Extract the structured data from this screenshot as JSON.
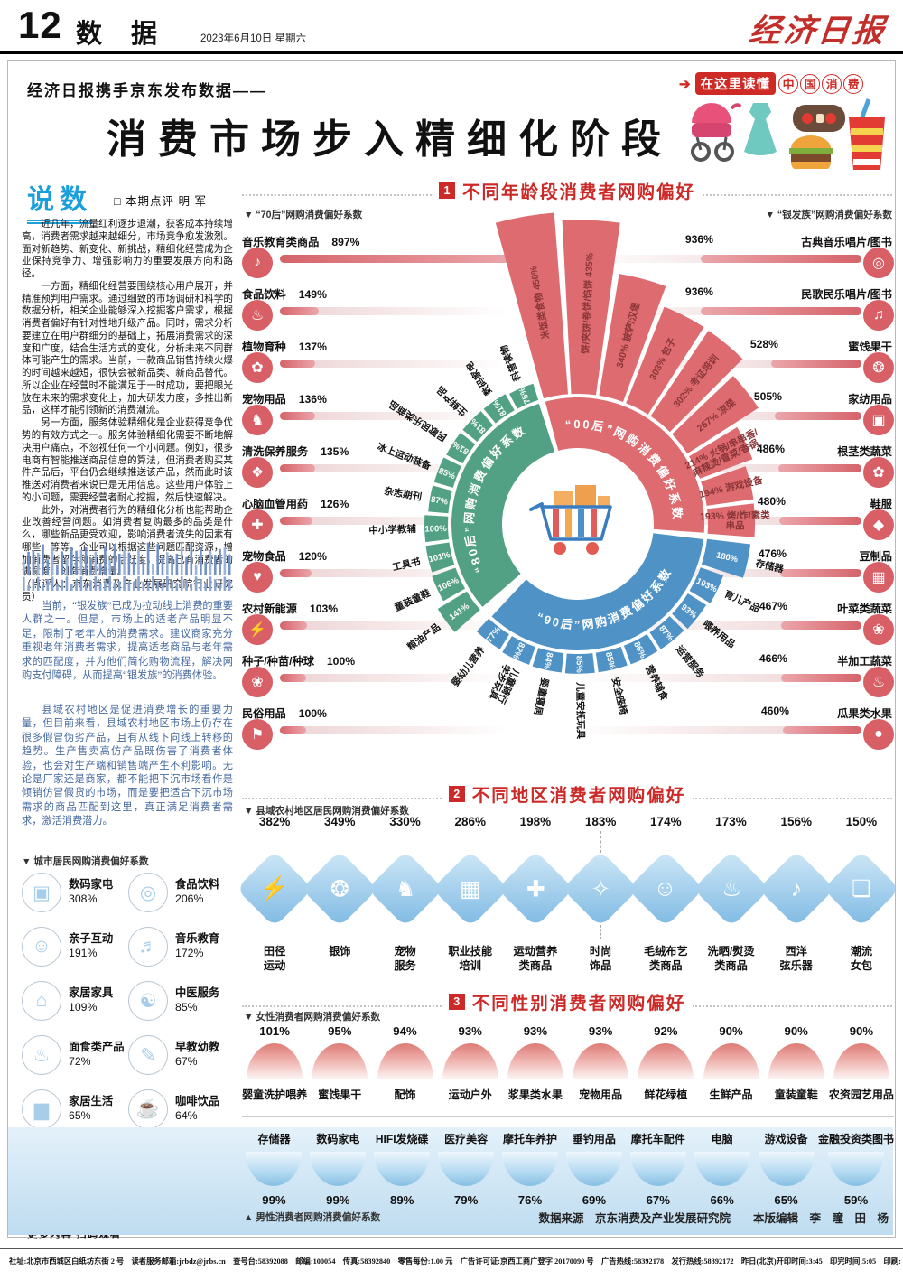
{
  "masthead": {
    "page_no": "12",
    "section_name": "数 据",
    "date": "2023年6月10日  星期六",
    "paper_name": "经济日报"
  },
  "title_block": {
    "kicker": "经济日报携手京东发布数据——",
    "title": "消费市场步入精细化阶段",
    "badge_arrow": "➔",
    "badge_prefix": "在这里读懂",
    "badge_chars": [
      "中",
      "国",
      "消",
      "费"
    ]
  },
  "commentary": {
    "title": "说数",
    "byline": "□ 本期点评  明  军",
    "paragraphs": [
      "近几年，流量红利逐步退潮，获客成本持续增高，消费者需求越来越细分，市场竞争愈发激烈。面对新趋势、新变化、新挑战，精细化经营成为企业保持竞争力、增强影响力的重要发展方向和路径。",
      "一方面，精细化经营要围绕核心用户展开，并精准预判用户需求。通过细致的市场调研和科学的数据分析，相关企业能够深入挖掘客户需求，根据消费者偏好有针对性地升级产品。同时，需求分析要建立在用户群细分的基础上，拓展消费需求的深度和广度，结合生活方式的变化，分析未来不同群体可能产生的需求。当前，一款商品销售持续火爆的时间越来越短，很快会被新品类、新商品替代。所以企业在经营时不能满足于一时成功，要把眼光放在未来的需求变化上，加大研发力度，多推出新品，这样才能引领新的消费潮流。",
      "另一方面，服务体验精细化是企业获得竞争优势的有效方式之一。服务体验精细化需要不断地解决用户痛点，不忽视任何一个小问题。例如，很多电商有智能推送商品信息的算法，但消费者购买某件产品后，平台仍会继续推送该产品，然而此时该推送对消费者来说已是无用信息。这些用户体验上的小问题，需要经营者耐心挖掘，然后快速解决。",
      "此外，对消费者行为的精细化分析也能帮助企业改善经营问题。如消费者复购最多的品类是什么，哪些新品更受欢迎，影响消费者流失的因素有哪些，等等。企业可以根据这些问题匹配资源，增加消费者留存和消费的活跃度，提高已有消费者的满意度，创造消费增量。",
      "（点评人：京东消费及产业发展研究院行业研究员）"
    ],
    "blue_paragraphs": [
      "当前，“银发族”已成为拉动线上消费的重要人群之一。但是，市场上的适老产品明显不足，限制了老年人的消费需求。建议商家充分重视老年消费者需求，提高适老商品与老年需求的匹配度，并为他们简化购物流程，解决网购支付障碍，从而提高“银发族”的消费体验。",
      "县域农村地区是促进消费增长的重要力量，但目前来看，县域农村地区市场上仍存在很多假冒伪劣产品，且有从线下向线上转移的趋势。生产售卖高仿产品既伤害了消费者体验，也会对生产端和销售端产生不利影响。无论是厂家还是商家，都不能把下沉市场看作是倾销仿冒假货的市场，而是要把适合下沉市场需求的商品匹配到这里，真正满足消费者需求，激活消费潜力。"
    ]
  },
  "city_prefs": {
    "caption": "▼ 城市居民网购消费偏好系数",
    "items": [
      {
        "label": "数码家电",
        "value": "308%",
        "icon": "tv-icon"
      },
      {
        "label": "食品饮料",
        "value": "206%",
        "icon": "donut-icon"
      },
      {
        "label": "亲子互动",
        "value": "191%",
        "icon": "parent-child-icon"
      },
      {
        "label": "音乐教育",
        "value": "172%",
        "icon": "music-disc-icon"
      },
      {
        "label": "家居家具",
        "value": "109%",
        "icon": "bed-icon"
      },
      {
        "label": "中医服务",
        "value": "85%",
        "icon": "tcm-mortar-icon"
      },
      {
        "label": "面食类产品",
        "value": "72%",
        "icon": "noodle-bowl-icon"
      },
      {
        "label": "早教幼教",
        "value": "67%",
        "icon": "pencil-icon"
      },
      {
        "label": "家居生活",
        "value": "65%",
        "icon": "sofa-icon"
      },
      {
        "label": "咖啡饮品",
        "value": "64%",
        "icon": "coffee-icon"
      }
    ]
  },
  "qr_block": {
    "caption": "更多内容 扫码观看",
    "period_title": "数据周期：",
    "period_lines": [
      "2023年1月1日至",
      "2023年5月31日"
    ],
    "note_lines": [
      "注：偏好系数越高表明该",
      "品类商品越受欢迎"
    ]
  },
  "section1": {
    "no": "1",
    "title": "不同年龄段消费者网购偏好",
    "gen70": {
      "caption": "▼ “70后”网购消费偏好系数",
      "scale_max": 897,
      "items": [
        {
          "label": "音乐教育类商品",
          "value": 897,
          "icon": "music-note-icon"
        },
        {
          "label": "食品饮料",
          "value": 149,
          "icon": "drink-bottle-icon"
        },
        {
          "label": "植物育种",
          "value": 137,
          "icon": "sprout-icon"
        },
        {
          "label": "宠物用品",
          "value": 136,
          "icon": "pet-icon"
        },
        {
          "label": "清洗保养服务",
          "value": 135,
          "icon": "cleaning-icon"
        },
        {
          "label": "心脑血管用药",
          "value": 126,
          "icon": "medicine-icon"
        },
        {
          "label": "宠物食品",
          "value": 120,
          "icon": "pet-bowl-icon"
        },
        {
          "label": "农村新能源",
          "value": 103,
          "icon": "battery-icon"
        },
        {
          "label": "种子/种苗/种球",
          "value": 100,
          "icon": "seeds-icon"
        },
        {
          "label": "民俗用品",
          "value": 100,
          "icon": "folk-goods-icon"
        }
      ]
    },
    "silver": {
      "caption": "▼ “银发族”网购消费偏好系数",
      "scale_max": 936,
      "items": [
        {
          "label": "古典音乐唱片/图书",
          "value": 936,
          "icon": "vinyl-icon"
        },
        {
          "label": "民歌民乐唱片/图书",
          "value": 936,
          "icon": "album-book-icon"
        },
        {
          "label": "蜜饯果干",
          "value": 528,
          "icon": "dried-fruit-icon"
        },
        {
          "label": "家纺用品",
          "value": 505,
          "icon": "pillow-icon"
        },
        {
          "label": "根茎类蔬菜",
          "value": 486,
          "icon": "root-vegetable-icon"
        },
        {
          "label": "鞋服",
          "value": 480,
          "icon": "shoe-icon"
        },
        {
          "label": "豆制品",
          "value": 476,
          "icon": "tofu-icon"
        },
        {
          "label": "叶菜类蔬菜",
          "value": 467,
          "icon": "leafy-vegetable-icon"
        },
        {
          "label": "半加工蔬菜",
          "value": 466,
          "icon": "prepared-vegetable-icon"
        },
        {
          "label": "瓜果类水果",
          "value": 460,
          "icon": "fruit-icon"
        }
      ]
    },
    "wheel": {
      "center_icon": "shopping-cart-icon",
      "groups": [
        {
          "name": "00后",
          "arc_label": "“00后”网购消费偏好系数",
          "color": "#dd6b6f",
          "text_color": "#8a3538",
          "start": -16,
          "end": 95,
          "segments": [
            {
              "label": "米饭类食物",
              "value": 450,
              "fmt": "name-first"
            },
            {
              "label": "饼/夹饼/卷饼/馅饼",
              "value": 435,
              "fmt": "name-first"
            },
            {
              "label": "披萨/汉堡",
              "value": 340
            },
            {
              "label": "包子",
              "value": 303
            },
            {
              "label": "考证培训",
              "value": 302
            },
            {
              "label": "凉菜",
              "value": 267
            },
            {
              "label": "火锅/串串香/麻辣烫/冒菜/香锅",
              "value": 214,
              "lines": [
                "火锅/串串香/",
                "麻辣烫/冒菜/香锅"
              ]
            },
            {
              "label": "游戏设备",
              "value": 194
            },
            {
              "label": "烤/炸/素类串品",
              "value": 193,
              "lines": [
                "烤/炸/素类",
                "串品"
              ]
            }
          ]
        },
        {
          "name": "90后",
          "arc_label": "“90后”网购消费偏好系数",
          "color": "#4f92c6",
          "start": 96,
          "end": 224,
          "segments": [
            {
              "label": "存储器",
              "value": 180
            },
            {
              "label": "育儿产品",
              "value": 103
            },
            {
              "label": "喂养用品",
              "value": 93
            },
            {
              "label": "运营服务",
              "value": 87
            },
            {
              "label": "营养辅食",
              "value": 86
            },
            {
              "label": "安全座椅",
              "value": 85
            },
            {
              "label": "儿童安抚玩具",
              "value": 85
            },
            {
              "label": "婴童寝居",
              "value": 84
            },
            {
              "label": "儿童骑行学步玩具",
              "value": 82,
              "lines": [
                "儿童骑行",
                "学步玩具"
              ]
            },
            {
              "label": "婴幼儿营养",
              "value": 77
            }
          ]
        },
        {
          "name": "80后",
          "arc_label": "“80后”网购消费偏好系数",
          "color": "#53a184",
          "start": 228,
          "end": 343,
          "segments": [
            {
              "label": "粮油产品",
              "value": 141
            },
            {
              "label": "童装童鞋",
              "value": 106
            },
            {
              "label": "工具书",
              "value": 101
            },
            {
              "label": "中小学教辅",
              "value": 100
            },
            {
              "label": "杂志期刊",
              "value": 87
            },
            {
              "label": "冰上运动装备",
              "value": 85
            },
            {
              "label": "民歌民乐类商品",
              "value": 81
            },
            {
              "label": "生鲜产品",
              "value": 81
            },
            {
              "label": "数码家电",
              "value": 81
            },
            {
              "label": "科普读物",
              "value": 75
            }
          ]
        }
      ]
    }
  },
  "section2": {
    "no": "2",
    "title": "不同地区消费者网购偏好",
    "caption": "▼ 县域农村地区居民网购消费偏好系数",
    "items": [
      {
        "value": "382%",
        "lines": [
          "田径",
          "运动"
        ],
        "icon": "runner-icon"
      },
      {
        "value": "349%",
        "lines": [
          "银饰"
        ],
        "icon": "necklace-icon"
      },
      {
        "value": "330%",
        "lines": [
          "宠物",
          "服务"
        ],
        "icon": "cat-icon"
      },
      {
        "value": "286%",
        "lines": [
          "职业技能",
          "培训"
        ],
        "icon": "training-icon"
      },
      {
        "value": "198%",
        "lines": [
          "运动营养",
          "类商品"
        ],
        "icon": "supplement-icon"
      },
      {
        "value": "183%",
        "lines": [
          "时尚",
          "饰品"
        ],
        "icon": "pendant-icon"
      },
      {
        "value": "174%",
        "lines": [
          "毛绒布艺",
          "类商品"
        ],
        "icon": "teddy-icon"
      },
      {
        "value": "173%",
        "lines": [
          "洗晒/熨烫",
          "类商品"
        ],
        "icon": "iron-icon"
      },
      {
        "value": "156%",
        "lines": [
          "西洋",
          "弦乐器"
        ],
        "icon": "violin-icon"
      },
      {
        "value": "150%",
        "lines": [
          "潮流",
          "女包"
        ],
        "icon": "handbag-icon"
      }
    ]
  },
  "section3": {
    "no": "3",
    "title": "不同性别消费者网购偏好",
    "female_caption": "▼ 女性消费者网购消费偏好系数",
    "male_caption": "▲ 男性消费者网购消费偏好系数",
    "female": [
      {
        "label": "婴童洗护喂养",
        "value": "101%"
      },
      {
        "label": "蜜饯果干",
        "value": "95%"
      },
      {
        "label": "配饰",
        "value": "94%"
      },
      {
        "label": "运动户外",
        "value": "93%"
      },
      {
        "label": "浆果类水果",
        "value": "93%"
      },
      {
        "label": "宠物用品",
        "value": "93%"
      },
      {
        "label": "鲜花绿植",
        "value": "92%"
      },
      {
        "label": "生鲜产品",
        "value": "90%"
      },
      {
        "label": "童装童鞋",
        "value": "90%"
      },
      {
        "label": "农资园艺用品",
        "value": "90%"
      }
    ],
    "male": [
      {
        "label": "存储器",
        "value": "99%"
      },
      {
        "label": "数码家电",
        "value": "99%"
      },
      {
        "label": "HIFI发烧碟",
        "value": "89%"
      },
      {
        "label": "医疗美容",
        "value": "79%"
      },
      {
        "label": "摩托车养护",
        "value": "76%"
      },
      {
        "label": "垂钓用品",
        "value": "69%"
      },
      {
        "label": "摩托车配件",
        "value": "67%"
      },
      {
        "label": "电脑",
        "value": "66%"
      },
      {
        "label": "游戏设备",
        "value": "65%"
      },
      {
        "label": "金融投资类图书",
        "value": "59%"
      }
    ]
  },
  "credits": "数据来源　京东消费及产业发展研究院　　本版编辑　李　瞳　田　杨",
  "footer": "社址:北京市西城区白纸坊东街 2 号　读者服务邮箱:jrbdz@jrbs.cn　查号台:58392088　邮编:100054　传真:58392840　零售每份:1.00 元　广告许可证:京西工商广登字 20170090 号　广告热线:58392178　发行热线:58392172　昨日(北京)开印时间:3:45　印完时间:5:05　印刷:"
}
